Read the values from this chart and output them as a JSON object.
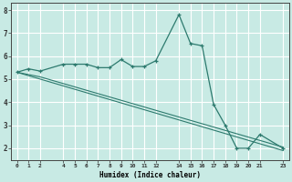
{
  "xlabel": "Humidex (Indice chaleur)",
  "bg_color": "#c8eae4",
  "grid_color": "#ffffff",
  "line_color": "#2d7a6e",
  "x_ticks": [
    0,
    1,
    2,
    4,
    5,
    6,
    7,
    8,
    9,
    10,
    11,
    12,
    14,
    15,
    16,
    17,
    18,
    19,
    20,
    21,
    23
  ],
  "line1_x": [
    0,
    1,
    2,
    4,
    5,
    6,
    7,
    8,
    9,
    10,
    11,
    12,
    14,
    15,
    16,
    17,
    18,
    19,
    20,
    21,
    23
  ],
  "line1_y": [
    5.3,
    5.45,
    5.35,
    5.65,
    5.65,
    5.65,
    5.5,
    5.5,
    5.85,
    5.55,
    5.55,
    5.8,
    7.8,
    6.55,
    6.45,
    3.9,
    3.0,
    2.0,
    2.0,
    2.6,
    2.0
  ],
  "line2_x": [
    0,
    23
  ],
  "line2_y": [
    5.3,
    1.9
  ],
  "line3_x": [
    0,
    2,
    23
  ],
  "line3_y": [
    5.3,
    5.1,
    2.05
  ],
  "ylim": [
    1.5,
    8.3
  ],
  "xlim": [
    -0.5,
    23.5
  ],
  "yticks": [
    2,
    3,
    4,
    5,
    6,
    7,
    8
  ]
}
